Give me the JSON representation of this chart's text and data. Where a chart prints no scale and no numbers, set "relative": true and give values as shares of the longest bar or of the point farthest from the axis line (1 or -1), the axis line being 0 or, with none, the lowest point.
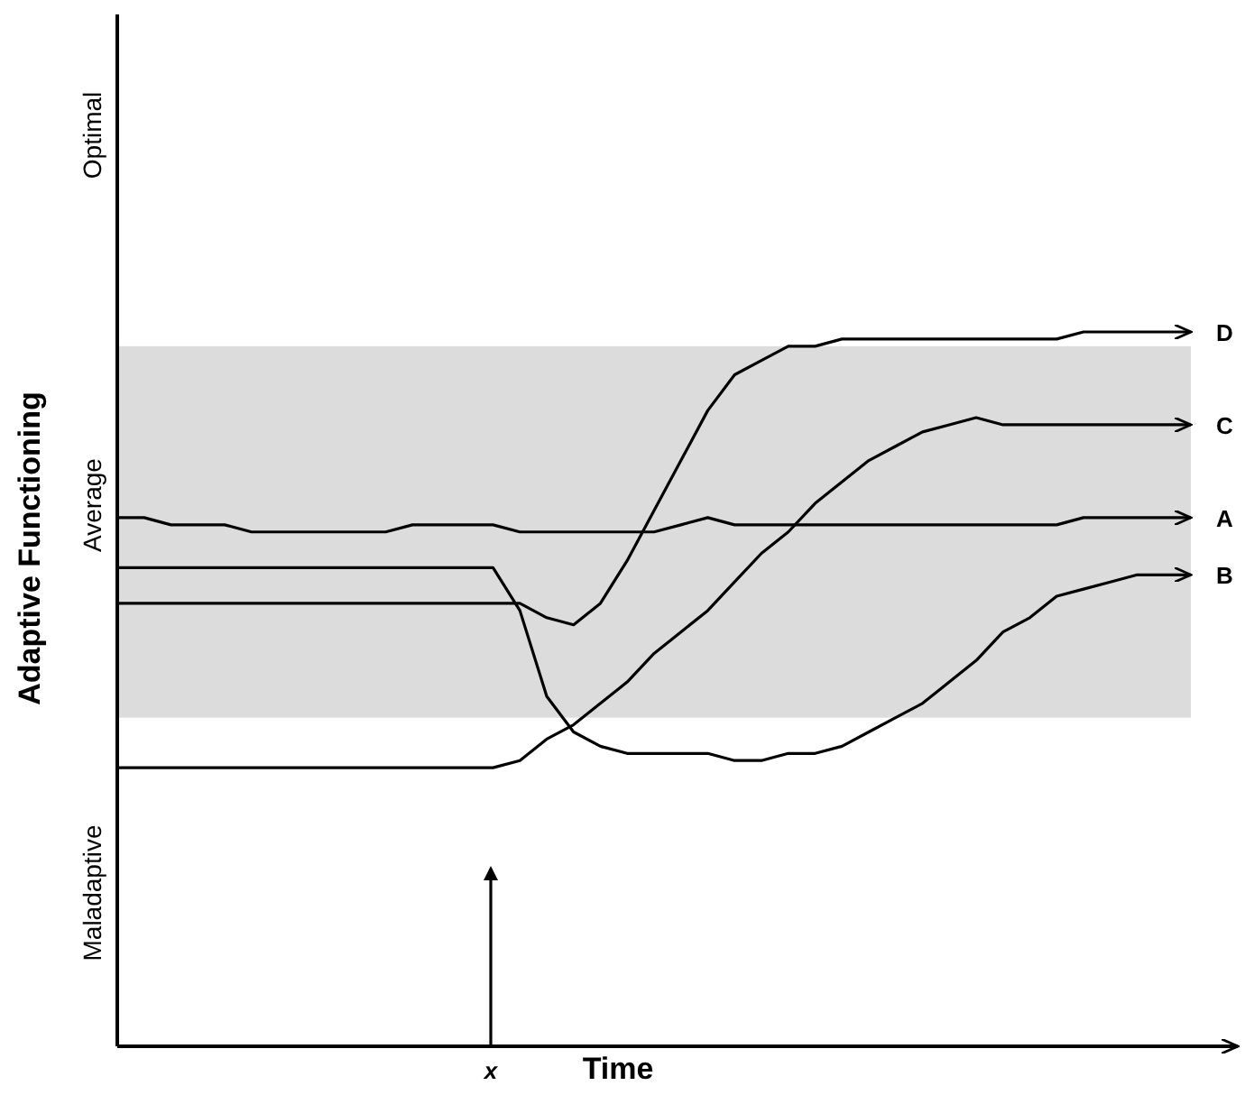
{
  "chart_data": {
    "type": "line",
    "relative": true,
    "xlabel": "Time",
    "ylabel": "Adaptive Functioning",
    "marker": "none",
    "line_style": "solid",
    "legend": false,
    "categories": [
      null,
      null,
      null,
      null,
      null,
      null,
      null,
      null,
      null,
      null,
      null,
      null,
      null,
      null,
      null,
      null,
      null,
      null,
      null,
      null,
      null,
      null,
      null,
      null,
      null,
      null,
      null,
      null,
      null,
      null,
      null,
      null,
      null,
      null,
      null,
      null,
      null,
      null,
      null,
      null,
      null
    ],
    "bands": [
      {
        "axis": "y",
        "from": 0.46,
        "to": 0.98,
        "color": "#dcdcdc"
      }
    ],
    "annotations": [
      "Maladaptive",
      "Average",
      "Optimal",
      "x"
    ],
    "series": [
      {
        "name": "A",
        "color": "#000000",
        "values": [
          0.74,
          0.74,
          0.73,
          0.73,
          0.73,
          0.72,
          0.72,
          0.72,
          0.72,
          0.72,
          0.72,
          0.73,
          0.73,
          0.73,
          0.73,
          0.72,
          0.72,
          0.72,
          0.72,
          0.72,
          0.72,
          0.73,
          0.74,
          0.73,
          0.73,
          0.73,
          0.73,
          0.73,
          0.73,
          0.73,
          0.73,
          0.73,
          0.73,
          0.73,
          0.73,
          0.73,
          0.74,
          0.74,
          0.74,
          0.74,
          0.74
        ]
      },
      {
        "name": "B",
        "color": "#000000",
        "values": [
          0.67,
          0.67,
          0.67,
          0.67,
          0.67,
          0.67,
          0.67,
          0.67,
          0.67,
          0.67,
          0.67,
          0.67,
          0.67,
          0.67,
          0.67,
          0.61,
          0.49,
          0.44,
          0.42,
          0.41,
          0.41,
          0.41,
          0.41,
          0.4,
          0.4,
          0.41,
          0.41,
          0.42,
          0.44,
          0.46,
          0.48,
          0.51,
          0.54,
          0.58,
          0.6,
          0.63,
          0.64,
          0.65,
          0.66,
          0.66,
          0.66
        ]
      },
      {
        "name": "C",
        "color": "#000000",
        "values": [
          0.39,
          0.39,
          0.39,
          0.39,
          0.39,
          0.39,
          0.39,
          0.39,
          0.39,
          0.39,
          0.39,
          0.39,
          0.39,
          0.39,
          0.39,
          0.4,
          0.43,
          0.45,
          0.48,
          0.51,
          0.55,
          0.58,
          0.61,
          0.65,
          0.69,
          0.72,
          0.76,
          0.79,
          0.82,
          0.84,
          0.86,
          0.87,
          0.88,
          0.87,
          0.87,
          0.87,
          0.87,
          0.87,
          0.87,
          0.87,
          0.87
        ]
      },
      {
        "name": "D",
        "color": "#000000",
        "values": [
          0.62,
          0.62,
          0.62,
          0.62,
          0.62,
          0.62,
          0.62,
          0.62,
          0.62,
          0.62,
          0.62,
          0.62,
          0.62,
          0.62,
          0.62,
          0.62,
          0.6,
          0.59,
          0.62,
          0.68,
          0.75,
          0.82,
          0.89,
          0.94,
          0.96,
          0.98,
          0.98,
          0.99,
          0.99,
          0.99,
          0.99,
          0.99,
          0.99,
          0.99,
          0.99,
          0.99,
          1,
          1,
          1,
          1,
          1
        ]
      }
    ]
  }
}
